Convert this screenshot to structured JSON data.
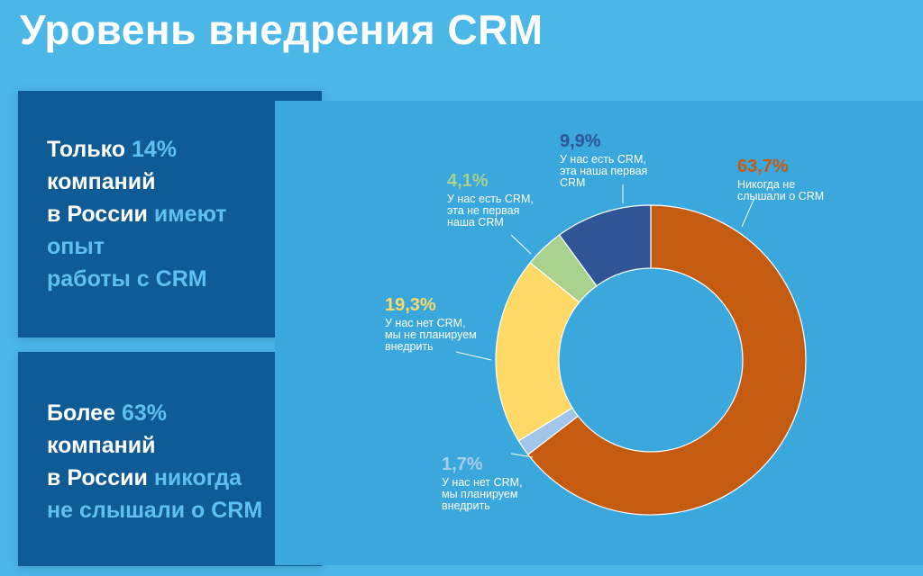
{
  "title": "Уровень внедрения CRM",
  "box1": {
    "l1a": "Только ",
    "l1b": "14%",
    "l2": "компаний",
    "l3a": "в России ",
    "l3b": "имеют",
    "l4": "опыт",
    "l5": "работы с CRM"
  },
  "box2": {
    "l1a": "Более ",
    "l1b": "63%",
    "l2": "компаний",
    "l3a": "в России ",
    "l3b": "никогда",
    "l4": "не слышали о CRM"
  },
  "colors": {
    "background": "#4bb6e8",
    "panel": "#3aa8dc",
    "box": "#0f5b96",
    "highlight": "#5ec0ee"
  },
  "chart_data": {
    "type": "pie",
    "donut": true,
    "slices": [
      {
        "value": 63.7,
        "label": "63,7%",
        "desc": [
          "Никогда не",
          "слышали о CRM"
        ],
        "color": "#c55a11",
        "label_color": "#c55a11"
      },
      {
        "value": 1.7,
        "label": "1,7%",
        "desc": [
          "У нас нет CRM,",
          "мы планируем",
          "внедрить"
        ],
        "color": "#9fc5e8",
        "label_color": "#a9cdea"
      },
      {
        "value": 19.3,
        "label": "19,3%",
        "desc": [
          "У нас нет CRM,",
          "мы не планируем",
          "внедрить"
        ],
        "color": "#ffd966",
        "label_color": "#ffd966"
      },
      {
        "value": 4.1,
        "label": "4,1%",
        "desc": [
          "У нас есть CRM,",
          "эта не первая",
          "наша CRM"
        ],
        "color": "#a9d18e",
        "label_color": "#a9d18e"
      },
      {
        "value": 9.9,
        "label": "9,9%",
        "desc": [
          "У нас есть CRM,",
          "эта наша первая",
          "CRM"
        ],
        "color": "#2f5597",
        "label_color": "#2f5597"
      }
    ]
  }
}
